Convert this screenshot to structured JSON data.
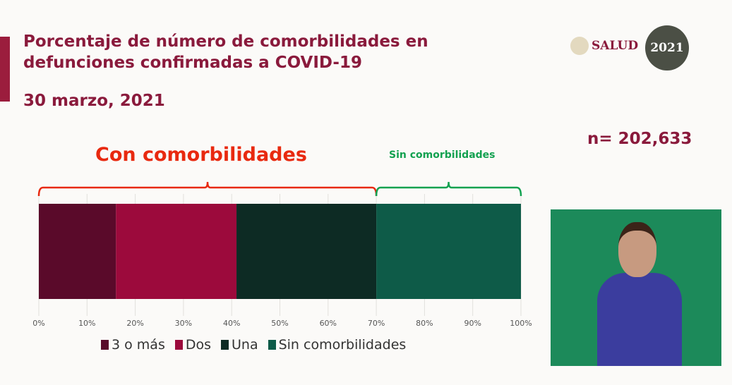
{
  "slide": {
    "title": "Porcentaje de número de comorbilidades en defunciones confirmadas a COVID-19",
    "date": "30 marzo, 2021",
    "n_label": "n= 202,633",
    "con_label": "Con comorbilidades",
    "sin_label": "Sin comorbilidades",
    "logos": {
      "salud": "SALUD",
      "mexico": "2021"
    }
  },
  "colors": {
    "accent": "#8a1a3c",
    "con_brace": "#e8290f",
    "sin_brace": "#12a150"
  },
  "chart_data": {
    "type": "bar",
    "orientation": "horizontal-stacked-100",
    "categories": [
      ""
    ],
    "series": [
      {
        "name": "3 o más",
        "values": [
          16
        ],
        "color": "#5a0a2a"
      },
      {
        "name": "Dos",
        "values": [
          25
        ],
        "color": "#9c0a3c"
      },
      {
        "name": "Una",
        "values": [
          29
        ],
        "color": "#0d2b24"
      },
      {
        "name": "Sin comorbilidades",
        "values": [
          30
        ],
        "color": "#0e5b48"
      }
    ],
    "xlim": [
      0,
      100
    ],
    "xticks": [
      "0%",
      "10%",
      "20%",
      "30%",
      "40%",
      "50%",
      "60%",
      "70%",
      "80%",
      "90%",
      "100%"
    ],
    "grid": true,
    "legend": "bottom"
  }
}
